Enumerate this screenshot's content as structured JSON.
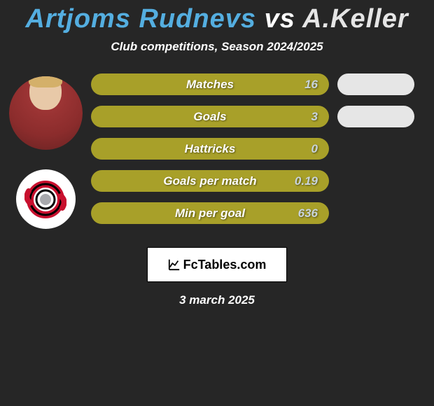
{
  "title": {
    "player1": "Artjoms Rudnevs",
    "vs": "vs",
    "player2": "A.Keller"
  },
  "subtitle": "Club competitions, Season 2024/2025",
  "colors": {
    "background": "#262626",
    "player1_color": "#54aee0",
    "player2_color": "#e5e5e5",
    "pill_left_bg": "#a8a029",
    "pill_right_bg": "#e6e6e6",
    "pill_text": "#ffffff",
    "pill_value": "#c9d4dc"
  },
  "layout": {
    "pill_left_width": 340,
    "pill_right_width": 110,
    "pill_height": 31,
    "pill_radius": 16
  },
  "stats": [
    {
      "label": "Matches",
      "value_left": "16",
      "has_right": true
    },
    {
      "label": "Goals",
      "value_left": "3",
      "has_right": true
    },
    {
      "label": "Hattricks",
      "value_left": "0",
      "has_right": false
    },
    {
      "label": "Goals per match",
      "value_left": "0.19",
      "has_right": false
    },
    {
      "label": "Min per goal",
      "value_left": "636",
      "has_right": false
    }
  ],
  "footer": {
    "site_label": "FcTables.com",
    "date": "3 march 2025"
  }
}
